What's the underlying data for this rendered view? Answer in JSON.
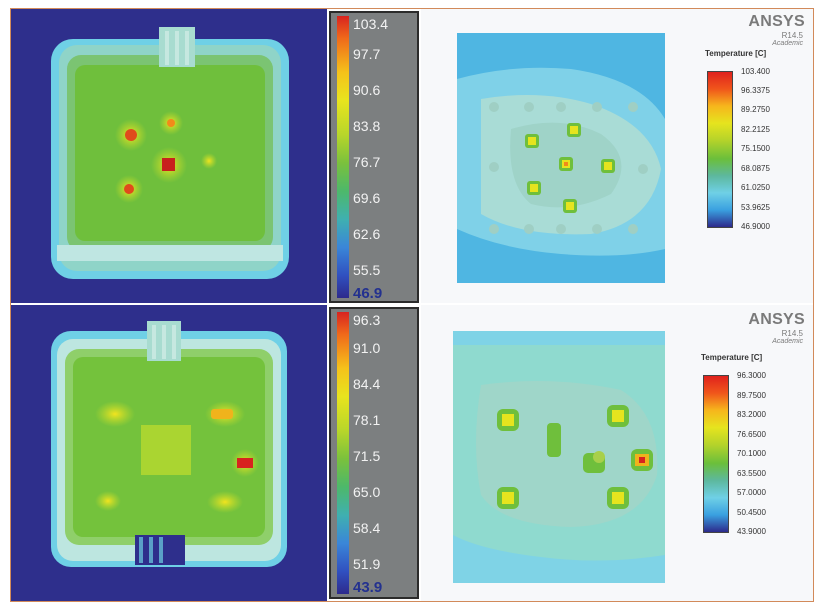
{
  "ir_top": {
    "colorbar": {
      "ticks": [
        "103.4",
        "97.7",
        "90.6",
        "83.8",
        "76.7",
        "69.6",
        "62.6",
        "55.5"
      ],
      "min": "46.9"
    }
  },
  "ir_bottom": {
    "colorbar": {
      "ticks": [
        "96.3",
        "91.0",
        "84.4",
        "78.1",
        "71.5",
        "65.0",
        "58.4",
        "51.9"
      ],
      "min": "43.9"
    }
  },
  "sim_top": {
    "brand": "ANSYS",
    "version": "R14.5",
    "edition": "Academic",
    "legend_title": "Temperature [C]",
    "legend_values": [
      "103.400",
      "96.3375",
      "89.2750",
      "82.2125",
      "75.1500",
      "68.0875",
      "61.0250",
      "53.9625",
      "46.9000"
    ]
  },
  "sim_bottom": {
    "brand": "ANSYS",
    "version": "R14.5",
    "edition": "Academic",
    "legend_title": "Temperature [C]",
    "legend_values": [
      "96.3000",
      "89.7500",
      "83.2000",
      "76.6500",
      "70.1000",
      "63.5500",
      "57.0000",
      "50.4500",
      "43.9000"
    ]
  },
  "colors": {
    "ir_background": "#2e2f8c",
    "frame_border": "#d28a5a",
    "hot": "#d8231f",
    "warm": "#e8e41e",
    "mid": "#7bc13c",
    "cool": "#3a86d8"
  }
}
